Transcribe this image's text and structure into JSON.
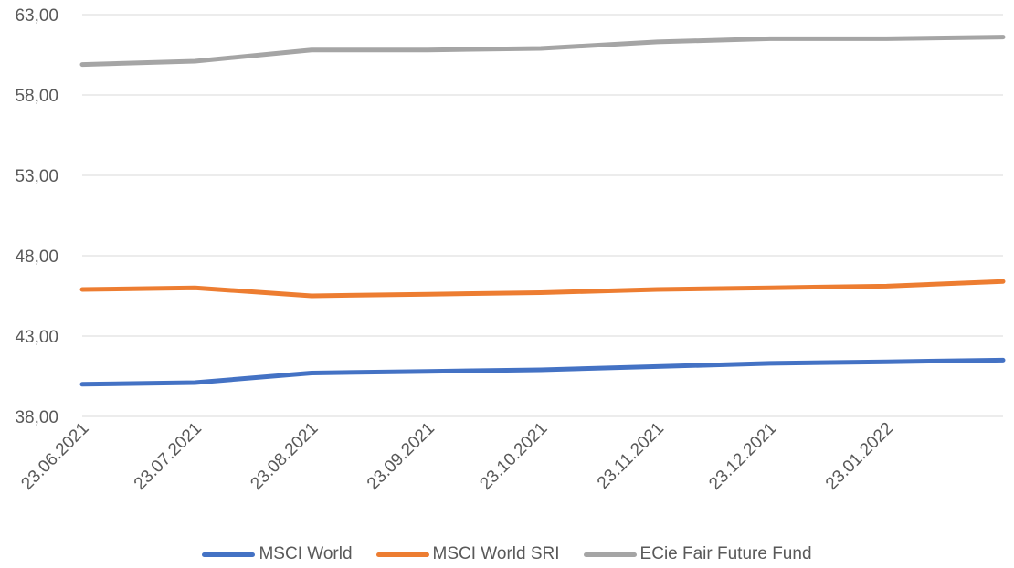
{
  "chart_data": {
    "type": "line",
    "title": "",
    "xlabel": "",
    "ylabel": "",
    "ylim": [
      38,
      63
    ],
    "yticks": [
      "38,00",
      "43,00",
      "48,00",
      "53,00",
      "58,00",
      "63,00"
    ],
    "ytick_values": [
      38,
      43,
      48,
      53,
      58,
      63
    ],
    "x_tick_labels": [
      "23.06.2021",
      "23.07.2021",
      "23.08.2021",
      "23.09.2021",
      "23.10.2021",
      "23.11.2021",
      "23.12.2021",
      "23.01.2022"
    ],
    "x": [
      "2021-06-23",
      "2021-07-23",
      "2021-08-23",
      "2021-09-23",
      "2021-10-23",
      "2021-11-23",
      "2021-12-23",
      "2022-01-23",
      "2022-02-23"
    ],
    "grid": true,
    "legend_position": "bottom",
    "series": [
      {
        "name": "MSCI World",
        "color": "#4472C4",
        "values": [
          40.0,
          40.1,
          40.7,
          40.8,
          40.9,
          41.1,
          41.3,
          41.4,
          41.5
        ]
      },
      {
        "name": "MSCI World SRI",
        "color": "#ED7D31",
        "values": [
          45.9,
          46.0,
          45.5,
          45.6,
          45.7,
          45.9,
          46.0,
          46.1,
          46.4
        ]
      },
      {
        "name": "ECie Fair Future Fund",
        "color": "#A5A5A5",
        "values": [
          59.9,
          60.1,
          60.8,
          60.8,
          60.9,
          61.3,
          61.5,
          61.5,
          61.6
        ]
      }
    ]
  }
}
